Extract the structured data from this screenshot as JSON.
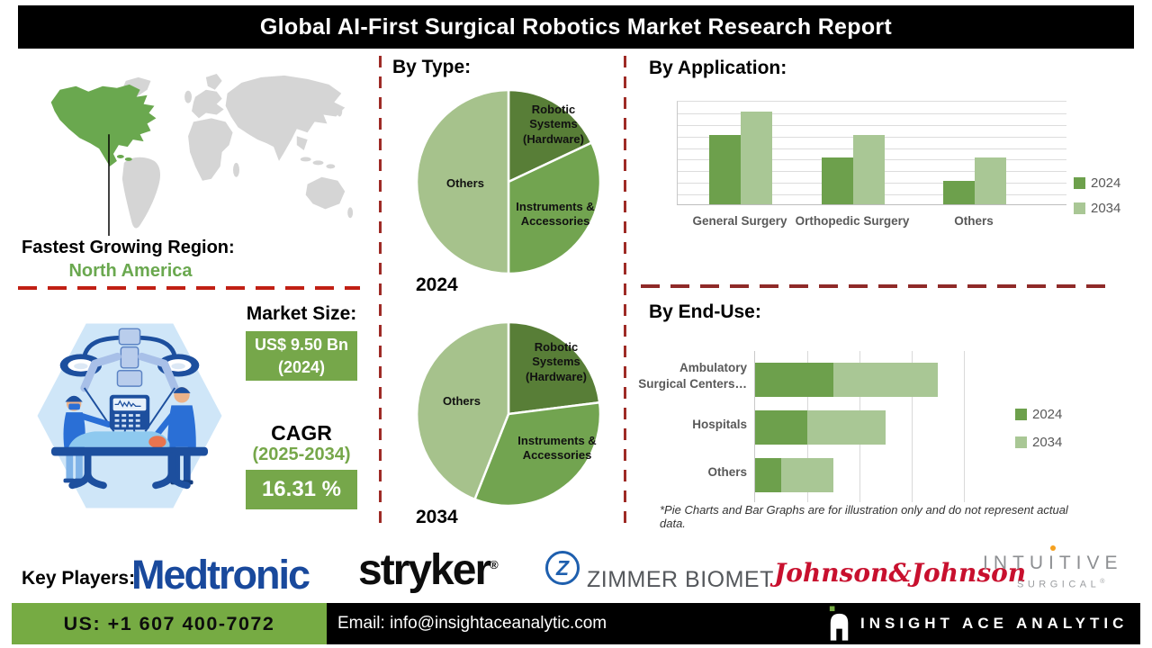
{
  "title": "Global AI-First Surgical Robotics Market Research Report",
  "region": {
    "label": "Fastest Growing Region:",
    "value": "North America"
  },
  "market": {
    "size_label": "Market Size:",
    "size_value": "US$ 9.50 Bn",
    "size_year": "(2024)",
    "cagr_label": "CAGR",
    "cagr_period": "(2025-2034)",
    "cagr_value": "16.31 %"
  },
  "sections": {
    "by_type": "By Type:",
    "by_application": "By Application:",
    "by_end_use": "By End-Use:"
  },
  "footnote": "*Pie Charts and Bar Graphs are for illustration only and do not represent actual data.",
  "key_players": {
    "label": "Key Players:",
    "medtronic": "Medtronic",
    "stryker": "stryker",
    "stryker_reg": "®",
    "zimmer_icon": "Z",
    "zimmer": "ZIMMER BIOMET",
    "jnj": "Johnson&Johnson",
    "intuitive_part1": "INTU",
    "intuitive_part2": "I",
    "intuitive_part3": "TIVE",
    "intuitive_sub": "SURGICAL",
    "intuitive_reg": "®"
  },
  "footer": {
    "phone": "US: +1 607 400-7072",
    "email": "Email: info@insightaceanalytic.com",
    "brand": "INSIGHT ACE ANALYTIC"
  },
  "colors": {
    "accent_green": "#76a74a",
    "map_green": "#6aa84f",
    "map_gray": "#d5d5d5",
    "dash_red": "#9e2b26",
    "footer_green": "#76ab43",
    "medtronic_blue": "#19499c",
    "jnj_red": "#c8102e",
    "intuitive_gray": "#8d8f92",
    "series_2024": "#6da04c",
    "series_2034": "#a9c795"
  },
  "chart_data": [
    {
      "id": "by_type_2024",
      "type": "pie",
      "title": "2024",
      "labels": [
        "Robotic Systems (Hardware)",
        "Instruments & Accessories",
        "Others"
      ],
      "values": [
        18,
        32,
        50
      ],
      "colors": [
        "#587e37",
        "#72a450",
        "#a6c28c"
      ],
      "note": "illustration only"
    },
    {
      "id": "by_type_2034",
      "type": "pie",
      "title": "2034",
      "labels": [
        "Robotic Systems (Hardware)",
        "Instruments & Accessories",
        "Others"
      ],
      "values": [
        23,
        33,
        44
      ],
      "colors": [
        "#587e37",
        "#72a450",
        "#a6c28c"
      ],
      "note": "illustration only"
    },
    {
      "id": "by_application",
      "type": "bar",
      "title": "By Application:",
      "categories": [
        "General Surgery",
        "Orthopedic Surgery",
        "Others"
      ],
      "series": [
        {
          "name": "2024",
          "values": [
            6,
            4,
            2
          ]
        },
        {
          "name": "2034",
          "values": [
            8,
            6,
            4
          ]
        }
      ],
      "colors": [
        "#6da04c",
        "#a9c795"
      ],
      "ylim": [
        0,
        9
      ],
      "grid": true,
      "legend_position": "right",
      "note": "illustration only"
    },
    {
      "id": "by_end_use",
      "type": "bar",
      "orientation": "horizontal",
      "stacked": true,
      "title": "By End-Use:",
      "categories": [
        "Ambulatory Surgical Centers…",
        "Hospitals",
        "Others"
      ],
      "series": [
        {
          "name": "2024",
          "values": [
            1.5,
            1.0,
            0.5
          ]
        },
        {
          "name": "2034",
          "values": [
            2.0,
            1.5,
            1.0
          ]
        }
      ],
      "colors": [
        "#6da04c",
        "#a9c795"
      ],
      "xlim": [
        0,
        4
      ],
      "grid": true,
      "legend_position": "right",
      "note": "illustration only"
    }
  ]
}
